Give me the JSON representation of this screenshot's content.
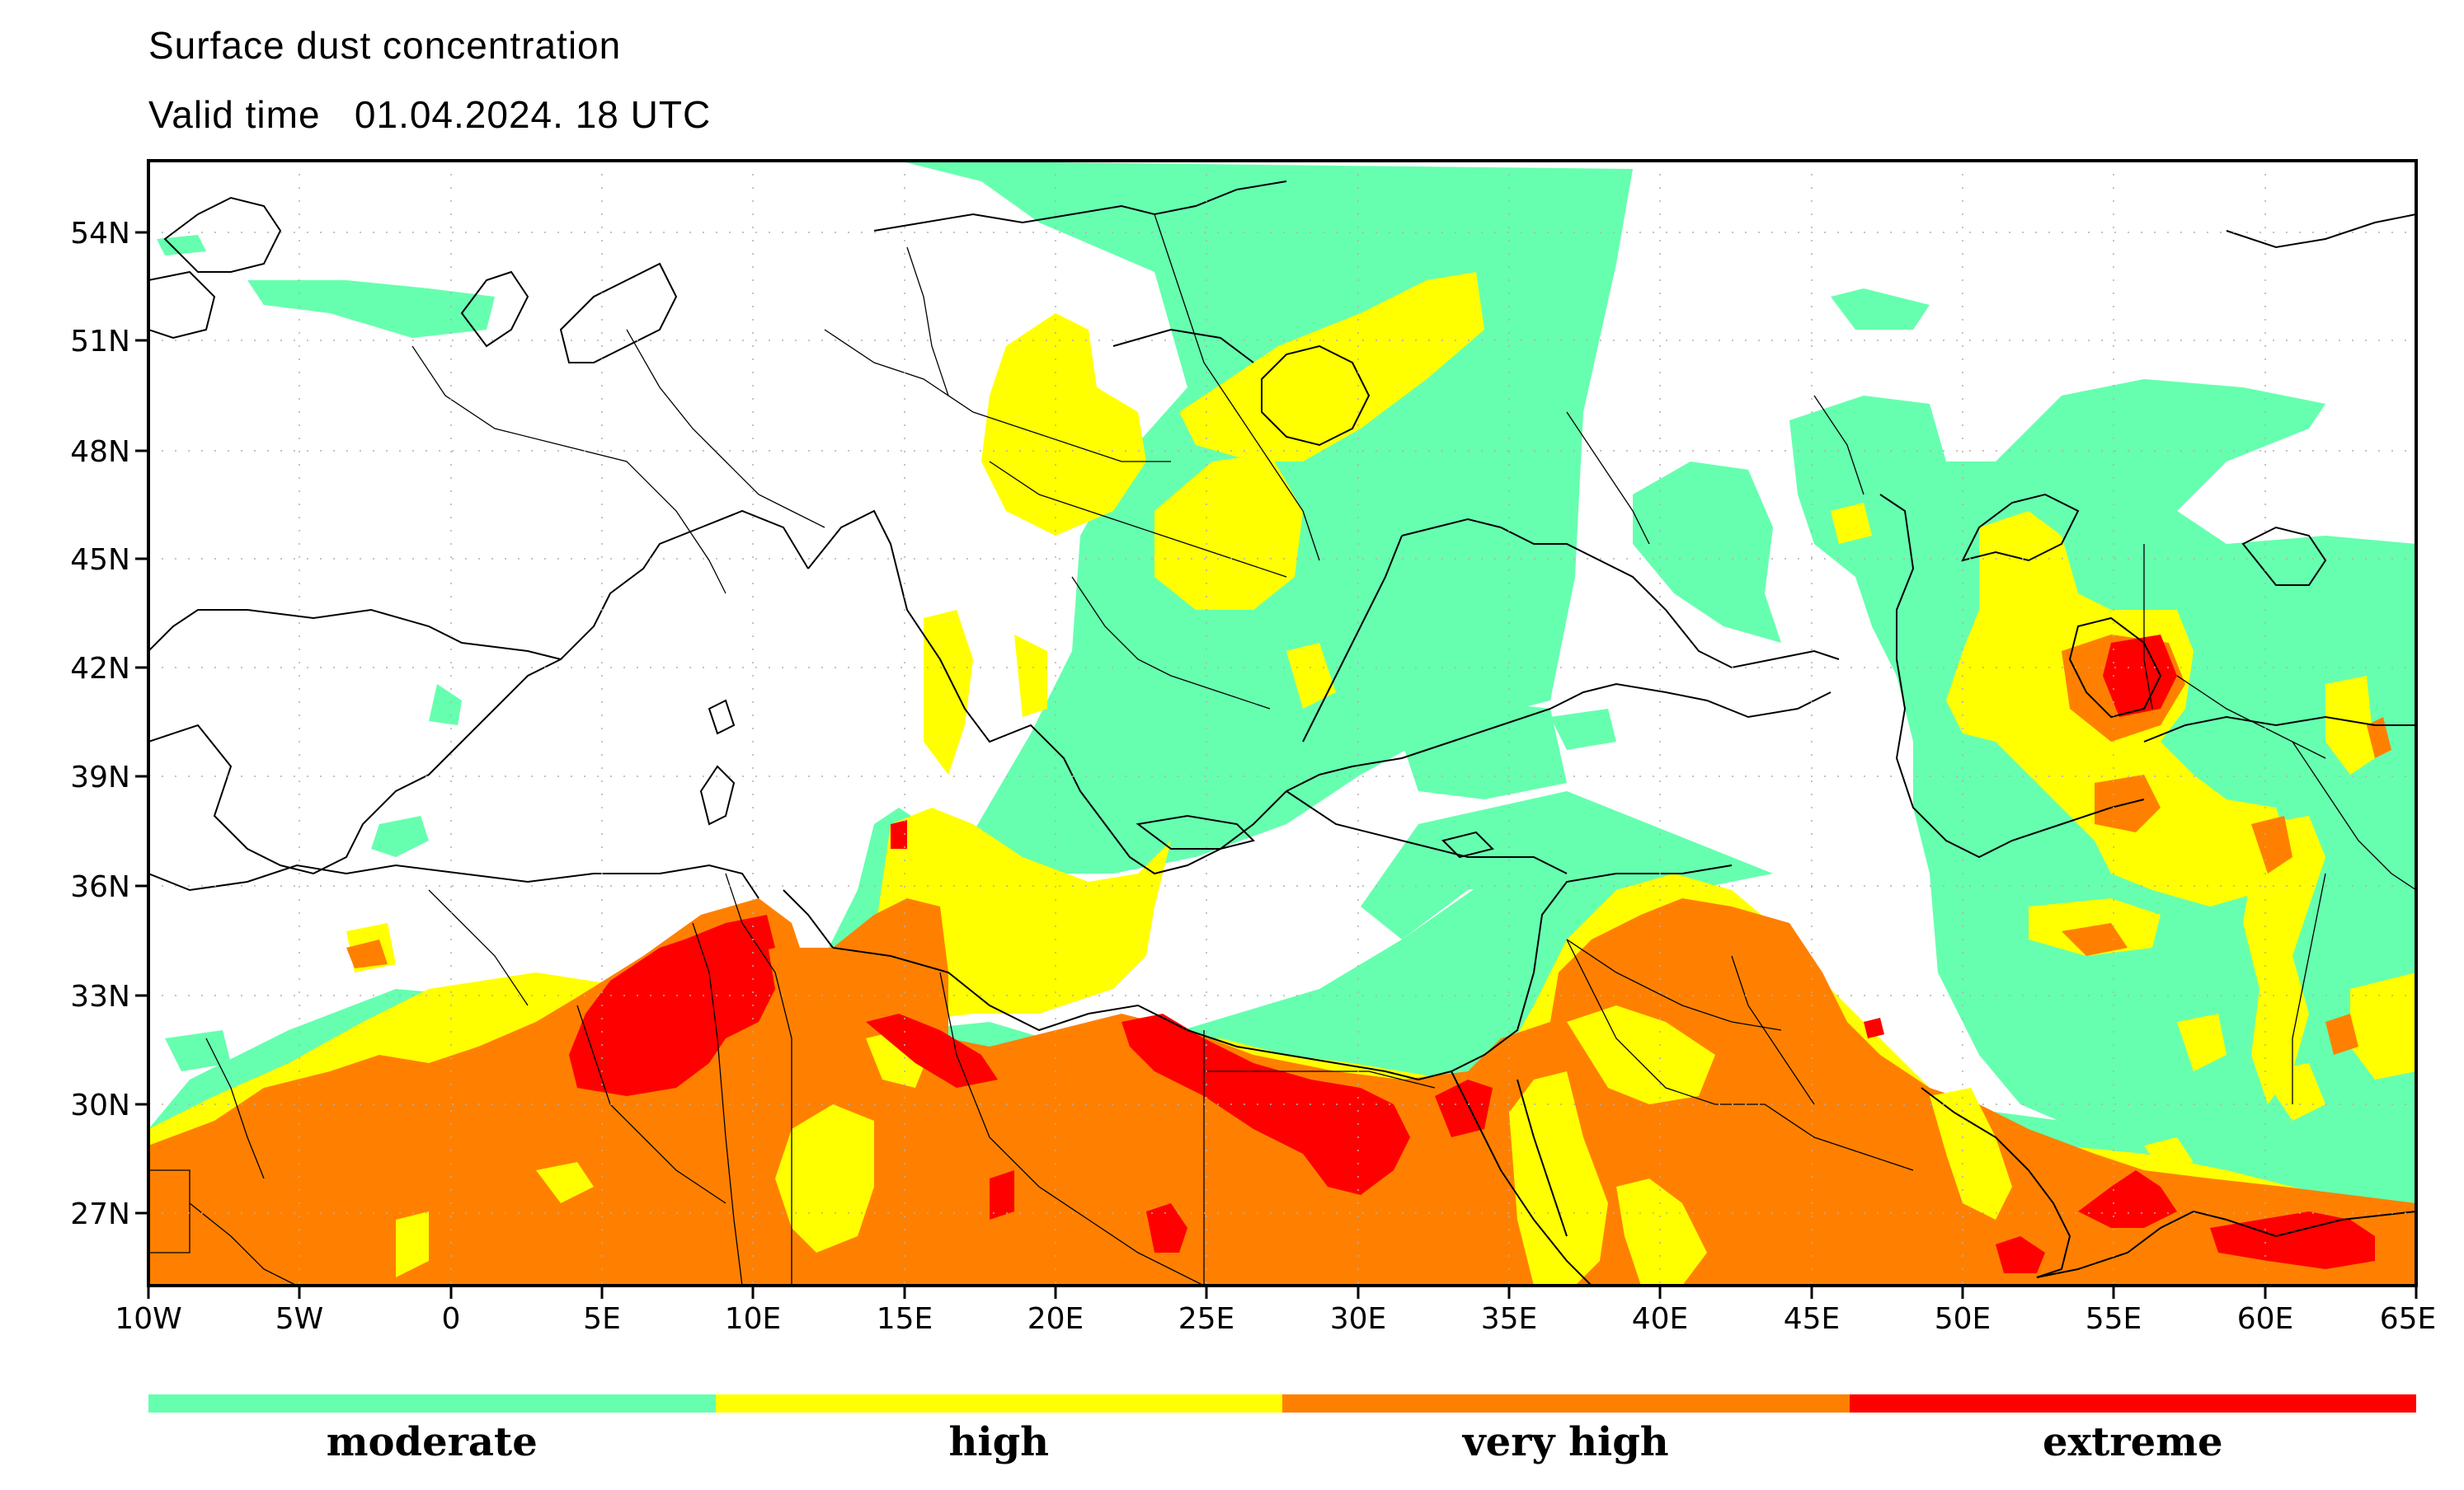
{
  "title": "Surface dust concentration",
  "valid_time_label": "Valid time",
  "valid_time_value": "01.04.2024. 18 UTC",
  "map": {
    "lon_range": [
      -10,
      65
    ],
    "lat_range": [
      24.5,
      56
    ],
    "lon_ticks": [
      "10W",
      "5W",
      "0",
      "5E",
      "10E",
      "15E",
      "20E",
      "25E",
      "30E",
      "35E",
      "40E",
      "45E",
      "50E",
      "55E",
      "60E",
      "65E"
    ],
    "lat_ticks": [
      "54N",
      "51N",
      "48N",
      "45N",
      "42N",
      "39N",
      "36N",
      "33N",
      "30N",
      "27N"
    ],
    "grid": "dotted"
  },
  "legend": [
    {
      "label": "moderate",
      "color": "#66ffaf"
    },
    {
      "label": "high",
      "color": "#ffff00"
    },
    {
      "label": "very high",
      "color": "#ff8000"
    },
    {
      "label": "extreme",
      "color": "#ff0000"
    }
  ]
}
